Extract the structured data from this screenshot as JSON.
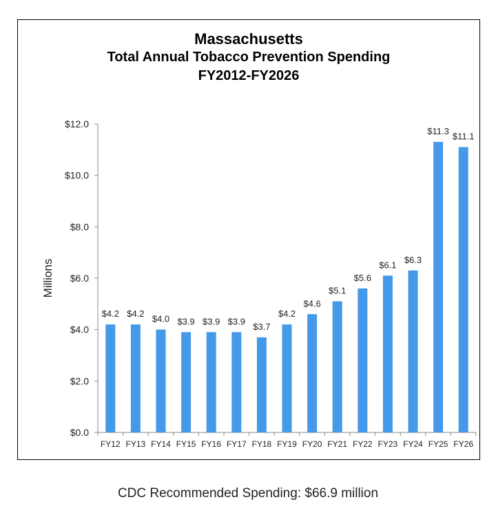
{
  "chart_data": {
    "type": "bar",
    "title": "Massachusetts",
    "subtitle_lines": [
      "Total Annual Tobacco Prevention Spending",
      "FY2012-FY2026"
    ],
    "xlabel": "",
    "ylabel": "Millions",
    "categories": [
      "FY12",
      "FY13",
      "FY14",
      "FY15",
      "FY16",
      "FY17",
      "FY18",
      "FY19",
      "FY20",
      "FY21",
      "FY22",
      "FY23",
      "FY24",
      "FY25",
      "FY26"
    ],
    "values": [
      4.2,
      4.2,
      4.0,
      3.9,
      3.9,
      3.9,
      3.7,
      4.2,
      4.6,
      5.1,
      5.6,
      6.1,
      6.3,
      11.3,
      11.1
    ],
    "data_labels": [
      "$4.2",
      "$4.2",
      "$4.0",
      "$3.9",
      "$3.9",
      "$3.9",
      "$3.7",
      "$4.2",
      "$4.6",
      "$5.1",
      "$5.6",
      "$6.1",
      "$6.3",
      "$11.3",
      "$11.1"
    ],
    "ylim": [
      0,
      12
    ],
    "yticks": [
      0,
      2,
      4,
      6,
      8,
      10,
      12
    ],
    "ytick_labels": [
      "$0.0",
      "$2.0",
      "$4.0",
      "$6.0",
      "$8.0",
      "$10.0",
      "$12.0"
    ],
    "grid": false,
    "legend": "none",
    "bar_color": "#4499e8"
  },
  "footer": {
    "note": "CDC Recommended Spending: $66.9 million"
  }
}
